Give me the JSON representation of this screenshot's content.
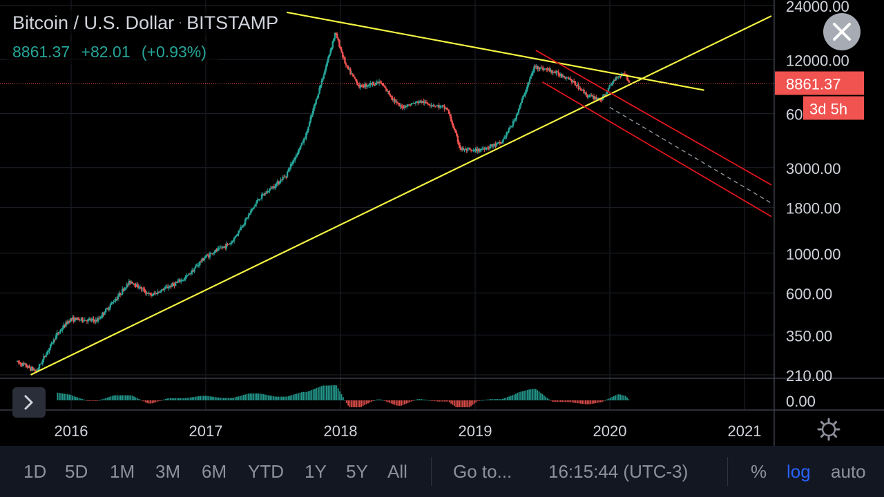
{
  "header": {
    "symbol": "Bitcoin / U.S. Dollar",
    "exchange": "BITSTAMP",
    "last_price": "8861.37",
    "change": "+82.01",
    "change_pct": "(+0.93%)"
  },
  "price_badge": "8861.37",
  "countdown_badge": "3d 5h",
  "close_button": "close-icon",
  "expand_button": "chevron-right-icon",
  "settings_button": "gear-icon",
  "toolbar": {
    "intervals": [
      "1D",
      "5D",
      "1M",
      "3M",
      "6M",
      "YTD",
      "1Y",
      "5Y",
      "All"
    ],
    "goto": "Go to...",
    "clock": "16:15:44 (UTC-3)",
    "percent": "%",
    "log": "log",
    "auto": "auto",
    "active": "log"
  },
  "colors": {
    "up": "#26a69a",
    "down": "#ef5350",
    "trendline": "#f5f542",
    "channel": "#e0161b",
    "badge": "#f05350",
    "active": "#2962ff"
  },
  "chart_data": {
    "type": "candlestick",
    "title": "Bitcoin / U.S. Dollar",
    "scale": "log",
    "x_ticks": [
      "2016",
      "2017",
      "2018",
      "2019",
      "2020",
      "2021"
    ],
    "y_ticks": [
      24000,
      12000,
      6000,
      3000,
      1800,
      1000,
      600,
      350,
      210
    ],
    "y_tick_labels": [
      "24000.00",
      "12000.00",
      "6000.00",
      "3000.00",
      "1800.00",
      "1000.00",
      "600.00",
      "350.00",
      "210.00"
    ],
    "price_line": 8861.37,
    "price_points": [
      [
        2015.6,
        250
      ],
      [
        2015.75,
        220
      ],
      [
        2015.9,
        350
      ],
      [
        2016.0,
        430
      ],
      [
        2016.2,
        420
      ],
      [
        2016.45,
        700
      ],
      [
        2016.6,
        580
      ],
      [
        2016.85,
        720
      ],
      [
        2017.0,
        950
      ],
      [
        2017.2,
        1150
      ],
      [
        2017.4,
        2000
      ],
      [
        2017.6,
        2700
      ],
      [
        2017.75,
        4500
      ],
      [
        2017.9,
        11000
      ],
      [
        2017.97,
        17000
      ],
      [
        2018.05,
        11000
      ],
      [
        2018.15,
        8500
      ],
      [
        2018.3,
        9000
      ],
      [
        2018.45,
        6500
      ],
      [
        2018.6,
        7000
      ],
      [
        2018.8,
        6400
      ],
      [
        2018.9,
        3800
      ],
      [
        2019.0,
        3700
      ],
      [
        2019.2,
        4100
      ],
      [
        2019.3,
        5500
      ],
      [
        2019.45,
        11000
      ],
      [
        2019.55,
        10500
      ],
      [
        2019.7,
        9500
      ],
      [
        2019.85,
        7500
      ],
      [
        2019.95,
        7200
      ],
      [
        2020.05,
        9500
      ],
      [
        2020.12,
        10200
      ],
      [
        2020.15,
        8861
      ]
    ],
    "indicator": {
      "name": "histogram",
      "zero_label": "0.00"
    },
    "drawings": {
      "support_trendline": [
        [
          2015.7,
          210
        ],
        [
          2021.2,
          21000
        ]
      ],
      "resistance_trendline": [
        [
          2017.6,
          22000
        ],
        [
          2020.7,
          8100
        ]
      ],
      "channel_upper": [
        [
          2019.45,
          13500
        ],
        [
          2021.2,
          2400
        ]
      ],
      "channel_lower": [
        [
          2019.5,
          9000
        ],
        [
          2021.2,
          1600
        ]
      ],
      "channel_mid": [
        [
          2020.0,
          6500
        ],
        [
          2021.2,
          1900
        ]
      ]
    }
  }
}
